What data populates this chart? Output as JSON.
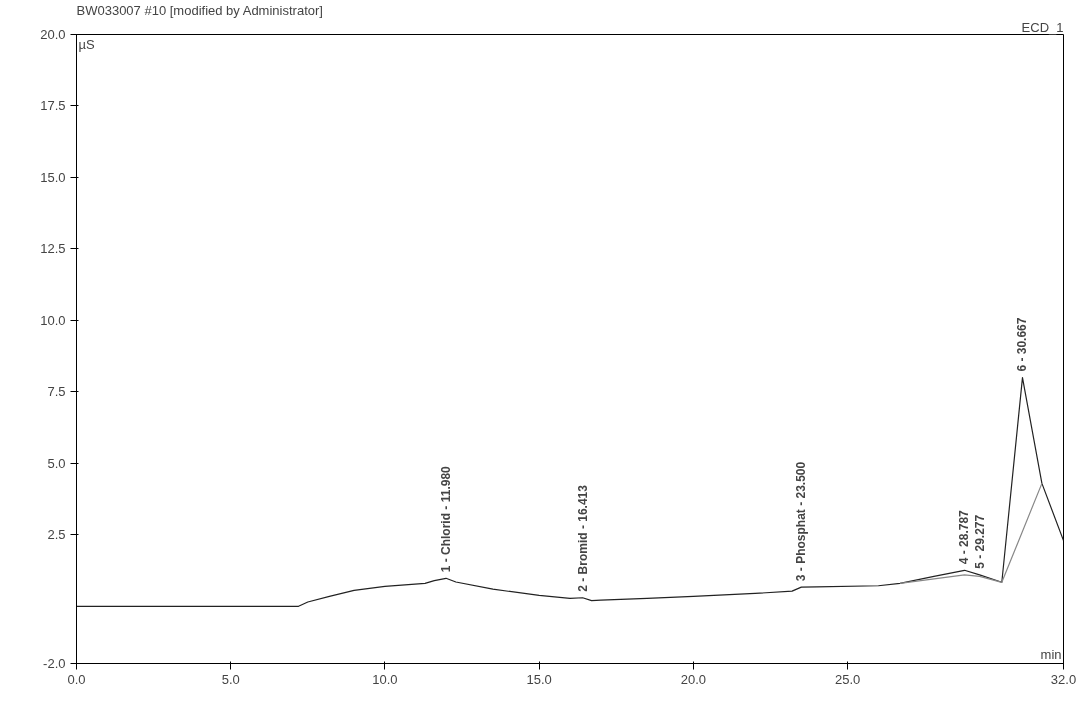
{
  "chart_data": {
    "type": "line",
    "title": "BW033007 #10 [modified by Administrator]",
    "subtitle": "ECD_1",
    "xlabel": "min",
    "ylabel": "µS",
    "xlim": [
      0,
      32
    ],
    "ylim": [
      -2,
      20
    ],
    "xticks": [
      {
        "value": 0,
        "label": "0.0"
      },
      {
        "value": 5,
        "label": "5.0"
      },
      {
        "value": 10,
        "label": "10.0"
      },
      {
        "value": 15,
        "label": "15.0"
      },
      {
        "value": 20,
        "label": "20.0"
      },
      {
        "value": 25,
        "label": "25.0"
      },
      {
        "value": 32,
        "label": "32.0"
      }
    ],
    "yticks": [
      {
        "value": -2,
        "label": "-2.0"
      },
      2.5,
      {
        "value": 5,
        "label": "5.0"
      },
      7.5,
      {
        "value": 10,
        "label": "10.0"
      },
      12.5,
      {
        "value": 15,
        "label": "15.0"
      },
      17.5,
      {
        "value": 20,
        "label": "20.0"
      }
    ],
    "grid": false,
    "line_style": "solid",
    "marker": "none",
    "series": [
      {
        "color": "#222222",
        "x": [
          0,
          7.2,
          7.5,
          8.2,
          9.0,
          10.0,
          11.3,
          11.6,
          11.98,
          12.3,
          13.5,
          15.0,
          16.0,
          16.41,
          16.7,
          17.0,
          18.5,
          20.0,
          22.0,
          23.2,
          23.5,
          24.0,
          26.0,
          26.7,
          27.8,
          28.79,
          29.28,
          30.0,
          30.67,
          31.3,
          32.0
        ],
        "values": [
          0,
          0,
          0.15,
          0.35,
          0.56,
          0.7,
          0.8,
          0.9,
          0.98,
          0.85,
          0.6,
          0.38,
          0.28,
          0.3,
          0.2,
          0.22,
          0.28,
          0.35,
          0.45,
          0.53,
          0.67,
          0.68,
          0.72,
          0.8,
          1.05,
          1.26,
          1.1,
          0.84,
          8.0,
          4.3,
          2.3
        ]
      },
      {
        "color": "#888888",
        "x": [
          26.7,
          28.79,
          29.28,
          30.0,
          31.3
        ],
        "values": [
          0.8,
          1.1,
          1.05,
          0.84,
          4.3
        ]
      }
    ],
    "annotations": [
      {
        "text": "1 - Chlorid - 11.980",
        "x": 11.98,
        "y": 0.98
      },
      {
        "text": "2 - Bromid - 16.413",
        "x": 16.413,
        "y": 0.3
      },
      {
        "text": "3 - Phosphat - 23.500",
        "x": 23.5,
        "y": 0.67
      },
      {
        "text": "4 - 28.787",
        "x": 28.787,
        "y": 1.26
      },
      {
        "text": "5 - 29.277",
        "x": 29.277,
        "y": 1.1
      },
      {
        "text": "6 - 30.667",
        "x": 30.667,
        "y": 8.0
      }
    ]
  }
}
